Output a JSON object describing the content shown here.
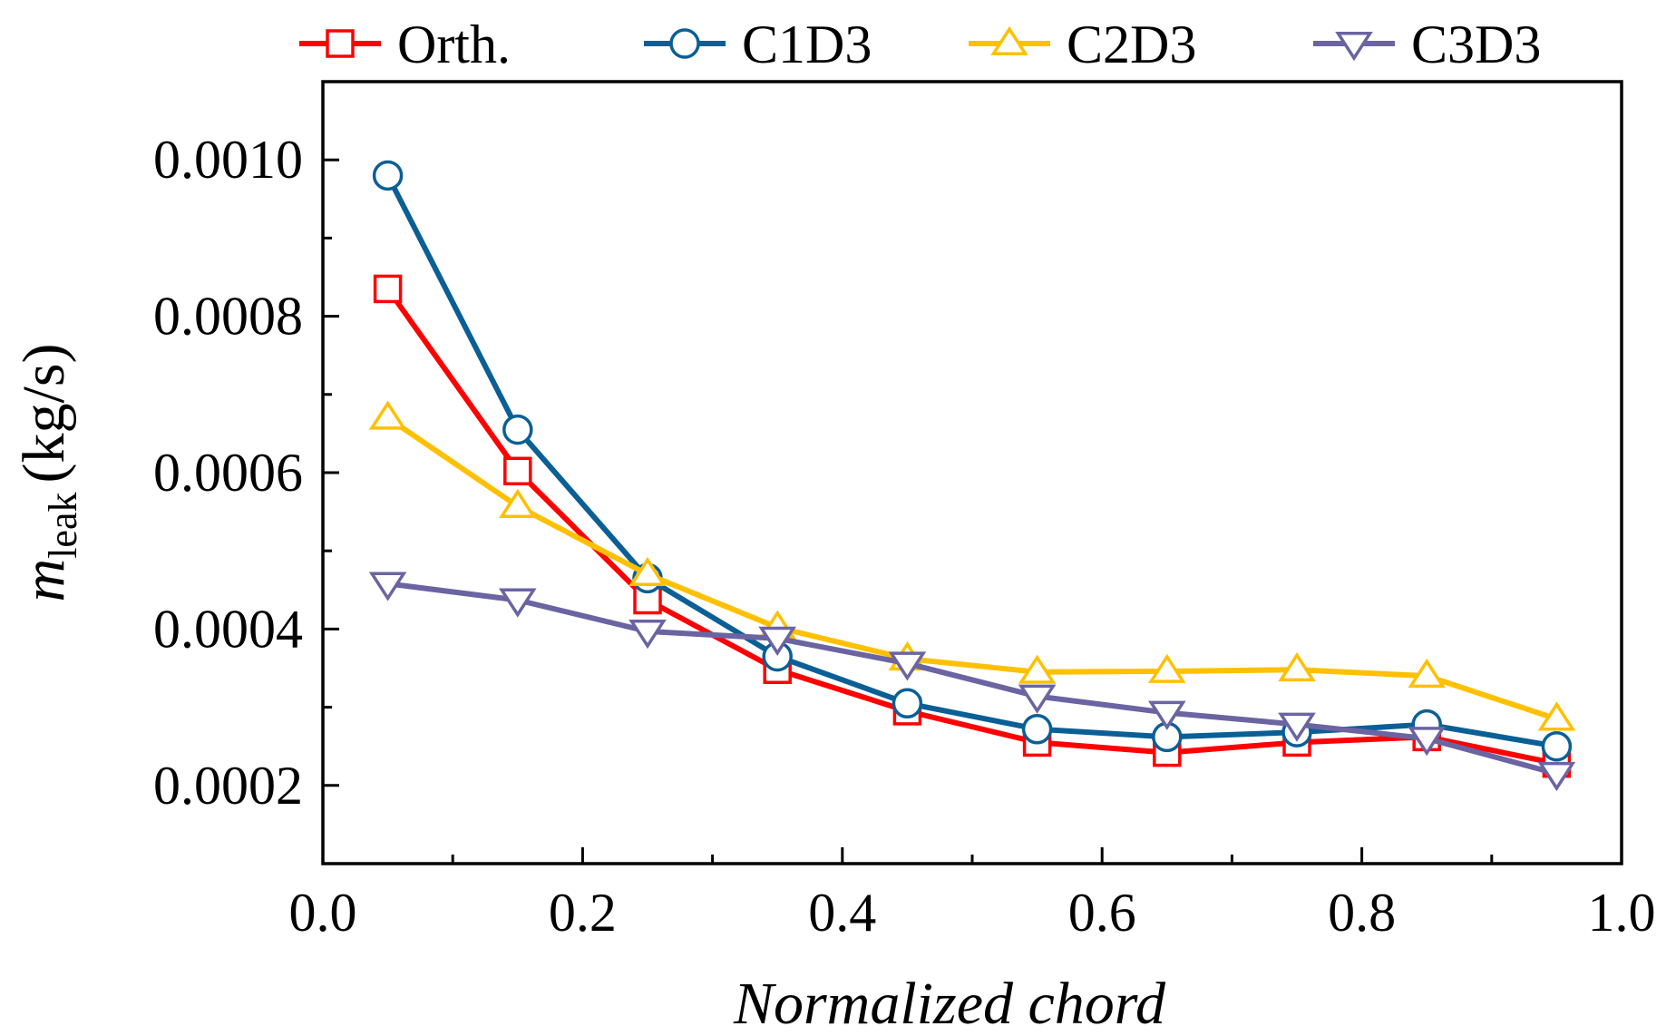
{
  "chart_data": {
    "type": "line",
    "title": "",
    "xlabel": "Normalized chord",
    "ylabel": {
      "main": "m",
      "subscript": "leak",
      "unit": "(kg/s)"
    },
    "xlim": [
      0.0,
      1.0
    ],
    "ylim": [
      0.0001,
      0.0011
    ],
    "x_ticks": [
      0.0,
      0.2,
      0.4,
      0.6,
      0.8,
      1.0
    ],
    "x_tick_labels": [
      "0.0",
      "0.2",
      "0.4",
      "0.6",
      "0.8",
      "1.0"
    ],
    "y_ticks": [
      0.0002,
      0.0004,
      0.0006,
      0.0008,
      0.001
    ],
    "y_tick_labels": [
      "0.0002",
      "0.0004",
      "0.0006",
      "0.0008",
      "0.0010"
    ],
    "grid": false,
    "legend_position": "top",
    "x": [
      0.05,
      0.15,
      0.25,
      0.35,
      0.45,
      0.55,
      0.65,
      0.75,
      0.85,
      0.95
    ],
    "series": [
      {
        "name": "Orth.",
        "color": "#ff0000",
        "marker": "square",
        "values": [
          0.000835,
          0.000602,
          0.000437,
          0.000348,
          0.000295,
          0.000255,
          0.000242,
          0.000255,
          0.000262,
          0.000228
        ]
      },
      {
        "name": "C1D3",
        "color": "#0a5f96",
        "marker": "circle",
        "values": [
          0.00098,
          0.000655,
          0.000465,
          0.000365,
          0.000305,
          0.000272,
          0.000262,
          0.000268,
          0.000278,
          0.00025
        ]
      },
      {
        "name": "C2D3",
        "color": "#ffc000",
        "marker": "triangle-up",
        "values": [
          0.00067,
          0.000557,
          0.00047,
          0.000402,
          0.000362,
          0.000345,
          0.000346,
          0.000348,
          0.00034,
          0.000285
        ]
      },
      {
        "name": "C3D3",
        "color": "#6b64a2",
        "marker": "triangle-down",
        "values": [
          0.000458,
          0.000437,
          0.000397,
          0.000388,
          0.000356,
          0.000314,
          0.000293,
          0.000278,
          0.00026,
          0.000215
        ]
      }
    ]
  }
}
